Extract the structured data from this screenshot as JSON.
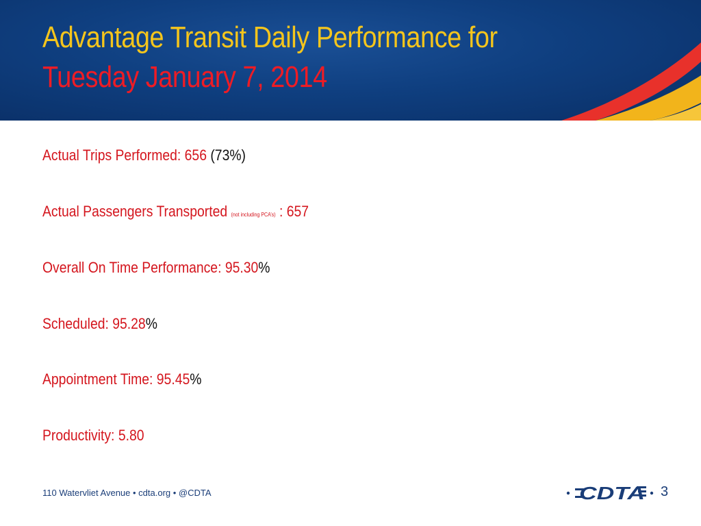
{
  "slide": {
    "title_line1": "Advantage Transit Daily Performance for",
    "title_line2": "Tuesday January 7, 2014"
  },
  "metrics": {
    "trips_label": "Actual Trips Performed:  ",
    "trips_value": "656",
    "trips_pct": " (73%)",
    "passengers_label": "Actual Passengers Transported ",
    "passengers_note": "(not including PCA’s)",
    "passengers_value": " : 657",
    "otp_label": "Overall On Time Performance: 95.30",
    "otp_pct": "%",
    "scheduled_label": "Scheduled: 95.28",
    "scheduled_pct": "%",
    "appointment_label": "Appointment Time: 95.45",
    "appointment_pct": "%",
    "productivity_label": "Productivity: 5.80"
  },
  "footer": {
    "address": "110 Watervliet Avenue • cdta.org • @CDTA",
    "logo_text": "CDTA",
    "page_number": "3"
  },
  "colors": {
    "header_blue": "#0f3f80",
    "title_yellow": "#f5c51c",
    "title_red": "#ee1c25",
    "body_red": "#d4151d",
    "footer_blue": "#1a3d78"
  }
}
